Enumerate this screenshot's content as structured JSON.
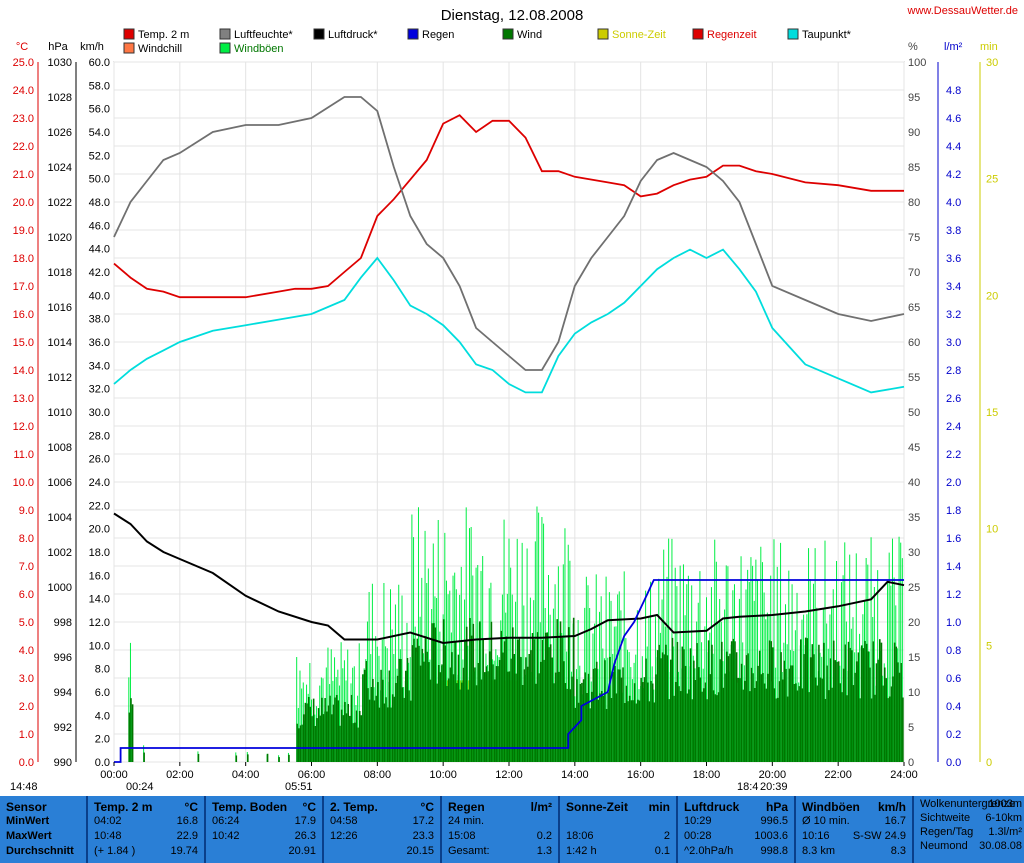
{
  "title": "Dienstag, 12.08.2008",
  "site": "www.DessauWetter.de",
  "colors": {
    "temp": "#dd0000",
    "hum": "#707070",
    "press": "#000000",
    "rain": "#0000dd",
    "wind": "#007700",
    "sun": "#cccc00",
    "dew": "#00dddd",
    "gust": "#00ee44",
    "windchill": "#ff7744"
  },
  "legend": [
    {
      "label": "Temp. 2 m",
      "color": "#dd0000"
    },
    {
      "label": "Luftfeuchte*",
      "color": "#808080"
    },
    {
      "label": "Luftdruck*",
      "color": "#000000"
    },
    {
      "label": "Regen",
      "color": "#0000dd"
    },
    {
      "label": "Wind",
      "color": "#007700"
    },
    {
      "label": "Sonne-Zeit",
      "color": "#cccc00"
    },
    {
      "label": "Regenzeit",
      "color": "#dd0000"
    },
    {
      "label": "Taupunkt*",
      "color": "#00dddd"
    },
    {
      "label": "Windchill",
      "color": "#ff7744"
    },
    {
      "label": "Windböen",
      "color": "#00ee44"
    }
  ],
  "axis_units": {
    "temp": "°C",
    "press": "hPa",
    "wind": "km/h",
    "hum": "%",
    "rain": "l/m²",
    "sun": "min"
  },
  "chart_data": {
    "type": "line",
    "x_range": [
      "00:00",
      "24:00"
    ],
    "x_ticks": [
      "00:00",
      "02:00",
      "04:00",
      "06:00",
      "08:00",
      "10:00",
      "12:00",
      "14:00",
      "16:00",
      "18:00",
      "20:00",
      "22:00",
      "24:00"
    ],
    "ylim_temp": [
      0,
      25
    ],
    "ylim_press": [
      990,
      1030
    ],
    "ylim_wind": [
      0,
      60
    ],
    "ylim_hum": [
      0,
      100
    ],
    "ylim_rain": [
      0,
      5
    ],
    "ylim_sun": [
      0,
      30
    ],
    "temp_ticks": [
      "0.0",
      "1.0",
      "2.0",
      "3.0",
      "4.0",
      "5.0",
      "6.0",
      "7.0",
      "8.0",
      "9.0",
      "10.0",
      "11.0",
      "12.0",
      "13.0",
      "14.0",
      "15.0",
      "16.0",
      "17.0",
      "18.0",
      "19.0",
      "20.0",
      "21.0",
      "22.0",
      "23.0",
      "24.0",
      "25.0"
    ],
    "press_ticks": [
      "990",
      "992",
      "994",
      "996",
      "998",
      "1000",
      "1002",
      "1004",
      "1006",
      "1008",
      "1010",
      "1012",
      "1014",
      "1016",
      "1018",
      "1020",
      "1022",
      "1024",
      "1026",
      "1028",
      "1030"
    ],
    "wind_ticks": [
      "0.0",
      "2.0",
      "4.0",
      "6.0",
      "8.0",
      "10.0",
      "12.0",
      "14.0",
      "16.0",
      "18.0",
      "20.0",
      "22.0",
      "24.0",
      "26.0",
      "28.0",
      "30.0",
      "32.0",
      "34.0",
      "36.0",
      "38.0",
      "40.0",
      "42.0",
      "44.0",
      "46.0",
      "48.0",
      "50.0",
      "52.0",
      "54.0",
      "56.0",
      "58.0",
      "60.0"
    ],
    "hum_ticks": [
      "0",
      "5",
      "10",
      "15",
      "20",
      "25",
      "30",
      "35",
      "40",
      "45",
      "50",
      "55",
      "60",
      "65",
      "70",
      "75",
      "80",
      "85",
      "90",
      "95",
      "100"
    ],
    "rain_ticks": [
      "0.0",
      "0.2",
      "0.4",
      "0.6",
      "0.8",
      "1.0",
      "1.2",
      "1.4",
      "1.6",
      "1.8",
      "2.0",
      "2.2",
      "2.4",
      "2.6",
      "2.8",
      "3.0",
      "3.2",
      "3.4",
      "3.6",
      "3.8",
      "4.0",
      "4.2",
      "4.4",
      "4.6",
      "4.8"
    ],
    "sun_ticks": [
      "0",
      "5",
      "10",
      "15",
      "20",
      "25",
      "30"
    ],
    "series": [
      {
        "name": "Temp. 2 m",
        "axis": "temp",
        "color": "#dd0000",
        "x": [
          0,
          0.5,
          1,
          1.5,
          2,
          3,
          4,
          5,
          5.5,
          6,
          6.5,
          7,
          7.5,
          8,
          8.5,
          9,
          9.5,
          10,
          10.5,
          11,
          11.5,
          12,
          12.5,
          13,
          13.5,
          14,
          15,
          15.5,
          16,
          16.5,
          17,
          17.5,
          18,
          18.5,
          19,
          19.5,
          20,
          21,
          22,
          23,
          24
        ],
        "y": [
          17.8,
          17.3,
          16.9,
          16.8,
          16.6,
          16.6,
          16.6,
          16.8,
          16.9,
          16.9,
          17.0,
          17.5,
          18.0,
          19.5,
          20.1,
          20.8,
          21.5,
          22.8,
          23.1,
          22.5,
          22.9,
          22.9,
          22.3,
          21.1,
          21.1,
          20.9,
          20.7,
          20.6,
          20.2,
          20.3,
          20.6,
          20.8,
          20.9,
          21.3,
          21.3,
          21.1,
          21.0,
          20.7,
          20.6,
          20.4,
          20.4
        ]
      },
      {
        "name": "Luftfeuchte*",
        "axis": "hum",
        "color": "#707070",
        "x": [
          0,
          0.5,
          1,
          1.5,
          2,
          3,
          4,
          5,
          6,
          7,
          7.5,
          8,
          8.5,
          9,
          9.5,
          10,
          10.5,
          11,
          11.5,
          12,
          12.5,
          13,
          13.5,
          14,
          14.5,
          15,
          15.5,
          16,
          16.5,
          17,
          17.5,
          18,
          18.5,
          19,
          19.5,
          20,
          21,
          22,
          23,
          24
        ],
        "y": [
          75,
          80,
          83,
          86,
          87,
          90,
          91,
          91,
          92,
          95,
          95,
          93,
          85,
          78,
          74,
          72,
          68,
          62,
          60,
          58,
          56,
          56,
          60,
          68,
          72,
          75,
          78,
          83,
          86,
          87,
          86,
          85,
          83,
          80,
          74,
          68,
          66,
          64,
          63,
          64
        ]
      },
      {
        "name": "Luftdruck*",
        "axis": "press",
        "color": "#000000",
        "x": [
          0,
          0.5,
          1,
          1.5,
          2,
          3,
          4,
          5,
          6,
          6.5,
          7,
          8,
          9,
          10,
          10.5,
          11,
          12,
          13,
          14,
          14.5,
          15,
          16,
          16.5,
          17,
          18,
          18.5,
          19,
          20,
          21,
          22,
          23,
          23.5,
          24
        ],
        "y": [
          1004.2,
          1003.6,
          1002.6,
          1002.0,
          1001.6,
          1000.8,
          999.5,
          998.6,
          998.0,
          997.8,
          997.0,
          997.0,
          997.4,
          996.8,
          996.9,
          997.0,
          997.1,
          997.1,
          997.2,
          997.6,
          998.1,
          998.2,
          998.4,
          997.4,
          997.5,
          998.2,
          998.3,
          998.4,
          998.6,
          998.9,
          999.3,
          1000.3,
          1000.1
        ]
      },
      {
        "name": "Taupunkt*",
        "axis": "temp",
        "color": "#00dddd",
        "x": [
          0,
          0.5,
          1,
          1.5,
          2,
          3,
          4,
          5,
          6,
          7,
          7.5,
          8,
          8.5,
          9,
          9.5,
          10,
          10.5,
          11,
          11.5,
          12,
          12.5,
          13,
          13.5,
          14,
          14.5,
          15,
          15.5,
          16,
          16.5,
          17,
          17.5,
          18,
          18.5,
          19,
          19.5,
          20,
          21,
          22,
          23,
          24
        ],
        "y": [
          13.5,
          14.0,
          14.4,
          14.7,
          15.0,
          15.4,
          15.6,
          15.8,
          16.0,
          16.5,
          17.3,
          18.0,
          17.2,
          16.3,
          16.0,
          15.6,
          15.0,
          14.2,
          14.0,
          13.5,
          13.2,
          13.2,
          14.5,
          15.3,
          15.7,
          16.0,
          16.4,
          17.0,
          17.6,
          18.0,
          18.3,
          18.0,
          18.3,
          17.6,
          16.8,
          15.5,
          14.2,
          13.7,
          13.2,
          13.4
        ]
      },
      {
        "name": "Regen",
        "axis": "rain",
        "color": "#0000dd",
        "x": [
          0,
          0.2,
          0.2,
          13.8,
          13.8,
          14.2,
          14.2,
          15.0,
          15.2,
          15.5,
          15.8,
          16.0,
          16.2,
          16.3,
          16.4,
          24
        ],
        "y": [
          0,
          0,
          0.1,
          0.1,
          0.2,
          0.3,
          0.4,
          0.5,
          0.7,
          0.9,
          1.0,
          1.1,
          1.2,
          1.25,
          1.3,
          1.3
        ]
      }
    ],
    "wind_summary": {
      "name": "Wind",
      "axis": "wind",
      "min": 0,
      "max": 22,
      "typical_range": [
        6,
        14
      ]
    },
    "gust_summary": {
      "name": "Windböen",
      "axis": "wind",
      "max": 24.9
    },
    "sun_periods_hours": [
      [
        9.85,
        10.9
      ],
      [
        11.45,
        11.55
      ],
      [
        11.75,
        12.3
      ]
    ]
  },
  "bottom_labels": {
    "left_time": "14:48",
    "moonset": "00:24",
    "sunrise": "05:51",
    "moonrise": "18:4",
    "sunset": "20:39"
  },
  "stats": {
    "sensor": {
      "header": "Sensor",
      "rows": [
        "MinWert",
        "MaxWert",
        "Durchschnitt"
      ]
    },
    "temp2m": {
      "header": "Temp. 2 m",
      "unit": "°C",
      "rows": [
        [
          "04:02",
          "16.8"
        ],
        [
          "10:48",
          "22.9"
        ],
        [
          "(+ 1.84 )",
          "19.74"
        ]
      ]
    },
    "tempboden": {
      "header": "Temp. Boden",
      "unit": "°C",
      "rows": [
        [
          "06:24",
          "17.9"
        ],
        [
          "10:42",
          "26.3"
        ],
        [
          "",
          "20.91"
        ]
      ]
    },
    "temp2": {
      "header": "2. Temp.",
      "unit": "°C",
      "rows": [
        [
          "04:58",
          "17.2"
        ],
        [
          "12:26",
          "23.3"
        ],
        [
          "",
          "20.15"
        ]
      ]
    },
    "regen": {
      "header": "Regen",
      "unit": "l/m²",
      "rows": [
        [
          "24 min.",
          ""
        ],
        [
          "15:08",
          "0.2"
        ],
        [
          "Gesamt:",
          "1.3"
        ]
      ]
    },
    "sonne": {
      "header": "Sonne-Zeit",
      "unit": "min",
      "rows": [
        [
          "",
          ""
        ],
        [
          "18:06",
          "2"
        ],
        [
          "1:42 h",
          "0.1"
        ]
      ]
    },
    "druck": {
      "header": "Luftdruck",
      "unit": "hPa",
      "rows": [
        [
          "10:29",
          "996.5"
        ],
        [
          "00:28",
          "1003.6"
        ],
        [
          "^2.0hPa/h",
          "998.8"
        ]
      ]
    },
    "boeen": {
      "header": "Windböen",
      "unit": "km/h",
      "rows": [
        [
          "Ø 10 min.",
          "16.7"
        ],
        [
          "10:16",
          "S-SW 24.9"
        ],
        [
          "8.3 km",
          "8.3"
        ]
      ]
    },
    "misc": {
      "rows": [
        [
          "Wolkenuntergrenze",
          "1003m"
        ],
        [
          "Sichtweite",
          "6-10km"
        ],
        [
          "Regen/Tag",
          "1.3l/m²"
        ],
        [
          "Neumond",
          "30.08.08"
        ]
      ]
    }
  }
}
